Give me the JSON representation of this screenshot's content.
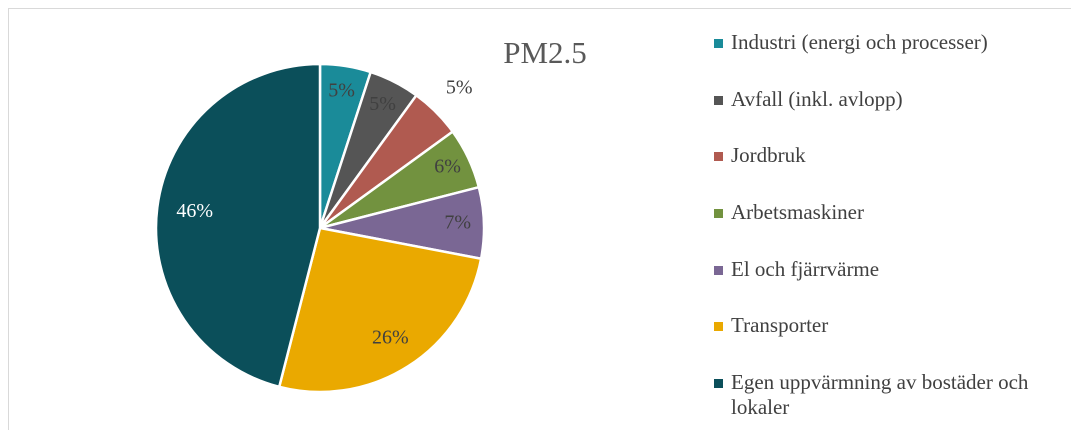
{
  "chart_data": {
    "type": "pie",
    "title": "PM2.5",
    "categories": [
      "Industri (energi och processer)",
      "Avfall (inkl. avlopp)",
      "Jordbruk",
      "Arbetsmaskiner",
      "El och fjärrvärme",
      "Transporter",
      "Egen uppvärmning av bostäder och lokaler"
    ],
    "values": [
      5,
      5,
      5,
      6,
      7,
      26,
      46
    ],
    "value_labels": [
      "5%",
      "5%",
      "5%",
      "6%",
      "7%",
      "26%",
      "46%"
    ],
    "colors": [
      "#1a8b99",
      "#555555",
      "#b05a50",
      "#72923f",
      "#7a6794",
      "#eaa900",
      "#0b4f5a"
    ],
    "legend": "right"
  }
}
